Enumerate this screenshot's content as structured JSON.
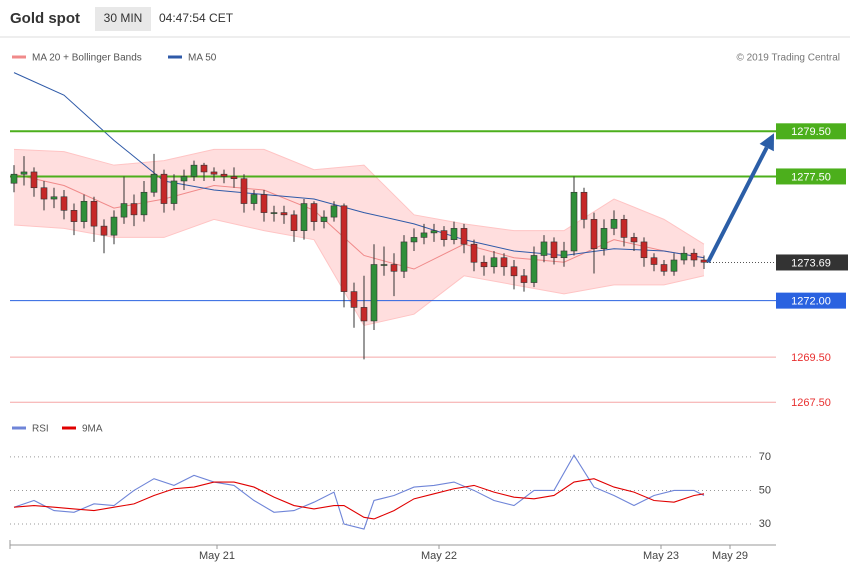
{
  "chart_data": [
    {
      "type": "candlestick",
      "title": "Gold spot",
      "interval": "30 MIN",
      "time": "04:47:54 CET",
      "source": "© 2019 Trading Central",
      "xlim": [
        -0.4,
        76.6
      ],
      "ylim": [
        1267.2,
        1283.5
      ],
      "up_color": "#2f8f3a",
      "down_color": "#c62828",
      "x": [
        0,
        1,
        2,
        3,
        4,
        5,
        6,
        7,
        8,
        9,
        10,
        11,
        12,
        13,
        14,
        15,
        16,
        17,
        18,
        19,
        20,
        21,
        22,
        23,
        24,
        25,
        26,
        27,
        28,
        29,
        30,
        31,
        32,
        33,
        34,
        35,
        36,
        37,
        38,
        39,
        40,
        41,
        42,
        43,
        44,
        45,
        46,
        47,
        48,
        49,
        50,
        51,
        52,
        53,
        54,
        55,
        56,
        57,
        58,
        59,
        60,
        61,
        62,
        63,
        64,
        65,
        66,
        67,
        68,
        69
      ],
      "open": [
        1277.2,
        1277.6,
        1277.7,
        1277.0,
        1276.5,
        1276.6,
        1276.0,
        1275.5,
        1276.4,
        1275.3,
        1274.9,
        1275.7,
        1276.3,
        1275.8,
        1276.8,
        1277.6,
        1276.3,
        1277.3,
        1277.5,
        1278.0,
        1277.7,
        1277.6,
        1277.5,
        1277.4,
        1276.3,
        1276.7,
        1275.9,
        1275.9,
        1275.8,
        1275.1,
        1276.3,
        1275.5,
        1275.7,
        1276.2,
        1272.4,
        1271.7,
        1271.1,
        1273.6,
        1273.6,
        1273.3,
        1274.6,
        1274.8,
        1275.0,
        1275.1,
        1274.7,
        1275.2,
        1274.5,
        1273.7,
        1273.5,
        1273.9,
        1273.5,
        1273.1,
        1272.8,
        1274.0,
        1274.6,
        1273.9,
        1274.2,
        1276.8,
        1275.6,
        1274.3,
        1275.2,
        1275.6,
        1274.8,
        1274.6,
        1273.9,
        1273.6,
        1273.3,
        1273.8,
        1274.1,
        1273.8
      ],
      "high": [
        1278.0,
        1278.4,
        1277.9,
        1277.3,
        1277.0,
        1276.9,
        1276.3,
        1276.7,
        1276.6,
        1275.6,
        1276.0,
        1277.5,
        1276.7,
        1277.3,
        1278.5,
        1277.8,
        1277.6,
        1277.8,
        1278.2,
        1278.1,
        1277.9,
        1277.8,
        1277.9,
        1277.6,
        1276.9,
        1276.9,
        1276.2,
        1276.2,
        1276.0,
        1276.5,
        1276.4,
        1276.0,
        1276.4,
        1276.3,
        1272.8,
        1273.1,
        1274.5,
        1274.4,
        1274.1,
        1274.9,
        1275.2,
        1275.4,
        1275.4,
        1275.3,
        1275.5,
        1275.4,
        1274.7,
        1274.0,
        1274.2,
        1274.1,
        1273.8,
        1273.4,
        1274.4,
        1274.9,
        1274.8,
        1274.6,
        1277.5,
        1277.0,
        1275.9,
        1275.6,
        1276.0,
        1275.8,
        1275.0,
        1274.8,
        1274.1,
        1273.8,
        1274.1,
        1274.4,
        1274.3,
        1274.0
      ],
      "low": [
        1276.8,
        1277.1,
        1276.6,
        1276.0,
        1276.1,
        1275.6,
        1274.9,
        1275.2,
        1274.6,
        1274.1,
        1274.5,
        1275.4,
        1275.3,
        1275.5,
        1276.6,
        1275.9,
        1276.0,
        1276.9,
        1277.3,
        1277.3,
        1277.3,
        1277.2,
        1277.0,
        1275.9,
        1276.0,
        1275.5,
        1275.5,
        1275.4,
        1274.6,
        1274.7,
        1275.1,
        1275.2,
        1275.5,
        1271.7,
        1270.8,
        1269.4,
        1270.7,
        1273.1,
        1272.2,
        1273.0,
        1274.2,
        1274.5,
        1274.6,
        1274.4,
        1274.5,
        1274.1,
        1273.3,
        1273.1,
        1273.2,
        1273.1,
        1272.5,
        1272.4,
        1272.6,
        1273.7,
        1273.6,
        1273.5,
        1274.0,
        1275.2,
        1273.2,
        1274.0,
        1274.9,
        1274.4,
        1274.2,
        1273.5,
        1273.3,
        1273.1,
        1273.1,
        1273.6,
        1273.5,
        1273.4
      ],
      "close": [
        1277.6,
        1277.7,
        1277.0,
        1276.5,
        1276.6,
        1276.0,
        1275.5,
        1276.4,
        1275.3,
        1274.9,
        1275.7,
        1276.3,
        1275.8,
        1276.8,
        1277.6,
        1276.3,
        1277.3,
        1277.5,
        1278.0,
        1277.7,
        1277.6,
        1277.5,
        1277.4,
        1276.3,
        1276.7,
        1275.9,
        1275.9,
        1275.8,
        1275.1,
        1276.3,
        1275.5,
        1275.7,
        1276.2,
        1272.4,
        1271.7,
        1271.1,
        1273.6,
        1273.6,
        1273.3,
        1274.6,
        1274.8,
        1275.0,
        1275.1,
        1274.7,
        1275.2,
        1274.5,
        1273.7,
        1273.5,
        1273.9,
        1273.5,
        1273.1,
        1272.8,
        1274.0,
        1274.6,
        1273.9,
        1274.2,
        1276.8,
        1275.6,
        1274.3,
        1275.2,
        1275.6,
        1274.8,
        1274.6,
        1273.9,
        1273.6,
        1273.3,
        1273.8,
        1274.1,
        1273.8,
        1273.7
      ],
      "bands": {
        "name": "MA 20 + Bollinger Bands",
        "color": "#f08a8a",
        "fill": "#ffdede",
        "x": [
          0,
          5,
          10,
          15,
          20,
          25,
          30,
          35,
          40,
          45,
          50,
          55,
          60,
          65,
          69
        ],
        "ma": [
          1277.6,
          1277.1,
          1276.1,
          1276.5,
          1277.1,
          1276.9,
          1276.0,
          1274.0,
          1273.4,
          1274.5,
          1273.9,
          1273.7,
          1274.7,
          1274.2,
          1273.9
        ],
        "upper": [
          1278.7,
          1278.6,
          1278.0,
          1278.2,
          1278.7,
          1278.7,
          1277.8,
          1278.0,
          1275.8,
          1275.4,
          1275.1,
          1275.1,
          1276.5,
          1275.6,
          1274.5
        ],
        "lower": [
          1275.35,
          1275.2,
          1274.8,
          1274.8,
          1275.6,
          1275.1,
          1274.7,
          1270.9,
          1271.4,
          1273.1,
          1272.7,
          1272.3,
          1272.7,
          1272.7,
          1273.1
        ]
      },
      "ma50": {
        "name": "MA 50",
        "color": "#2f5aa8",
        "x": [
          0,
          5,
          10,
          15,
          20,
          25,
          30,
          35,
          40,
          45,
          50,
          55,
          60,
          65,
          69
        ],
        "values": [
          1282.1,
          1281.1,
          1279.1,
          1277.3,
          1276.9,
          1276.7,
          1276.5,
          1275.9,
          1275.4,
          1274.7,
          1274.2,
          1274.0,
          1274.3,
          1274.2,
          1273.9
        ]
      },
      "levels": [
        {
          "value": 1279.5,
          "label": "1279.50",
          "color": "#4caf1c",
          "style": "box"
        },
        {
          "value": 1277.5,
          "label": "1277.50",
          "color": "#4caf1c",
          "style": "box"
        },
        {
          "value": 1273.69,
          "label": "1273.69",
          "color": "#333333",
          "style": "current"
        },
        {
          "value": 1272.0,
          "label": "1272.00",
          "color": "#2a62e0",
          "style": "box"
        },
        {
          "value": 1269.5,
          "label": "1269.50",
          "color": "#e83030",
          "style": "text"
        },
        {
          "value": 1267.5,
          "label": "1267.50",
          "color": "#e83030",
          "style": "text"
        }
      ],
      "arrow_color": "#2b5ea7"
    },
    {
      "type": "line",
      "xlim": [
        -0.4,
        76.6
      ],
      "ylim": [
        17.5,
        86
      ],
      "yticks": [
        30,
        50,
        70
      ],
      "xticks": [
        {
          "value": 20.3,
          "label": "May 21"
        },
        {
          "value": 42.5,
          "label": "May 22"
        },
        {
          "value": 64.7,
          "label": "May 23"
        },
        {
          "value": 71.6,
          "label": "May 29"
        }
      ],
      "x": [
        0,
        2,
        4,
        6,
        8,
        10,
        12,
        14,
        16,
        18,
        20,
        22,
        24,
        26,
        28,
        30,
        32,
        33,
        35,
        36,
        38,
        40,
        42,
        44,
        46,
        48,
        50,
        52,
        54,
        56,
        58,
        60,
        62,
        64,
        66,
        68,
        69
      ],
      "series": [
        {
          "name": "RSI",
          "color": "#6f85d8",
          "values": [
            40,
            44,
            38,
            37,
            42,
            41,
            50,
            57,
            53,
            59,
            55,
            53,
            44,
            37,
            38,
            43,
            49,
            30,
            27,
            44,
            47,
            52,
            53,
            55,
            50,
            44,
            41,
            50,
            50,
            71,
            52,
            47,
            41,
            47,
            50,
            50,
            47
          ]
        },
        {
          "name": "9MA",
          "color": "#e00000",
          "values": [
            40,
            41,
            40,
            39,
            38,
            40,
            42,
            47,
            51,
            52,
            55,
            55,
            52,
            46,
            41,
            39,
            41,
            41,
            34,
            33,
            38,
            45,
            48,
            51,
            53,
            49,
            46,
            45,
            47,
            55,
            57,
            52,
            49,
            44,
            43,
            47,
            48
          ]
        }
      ]
    }
  ]
}
